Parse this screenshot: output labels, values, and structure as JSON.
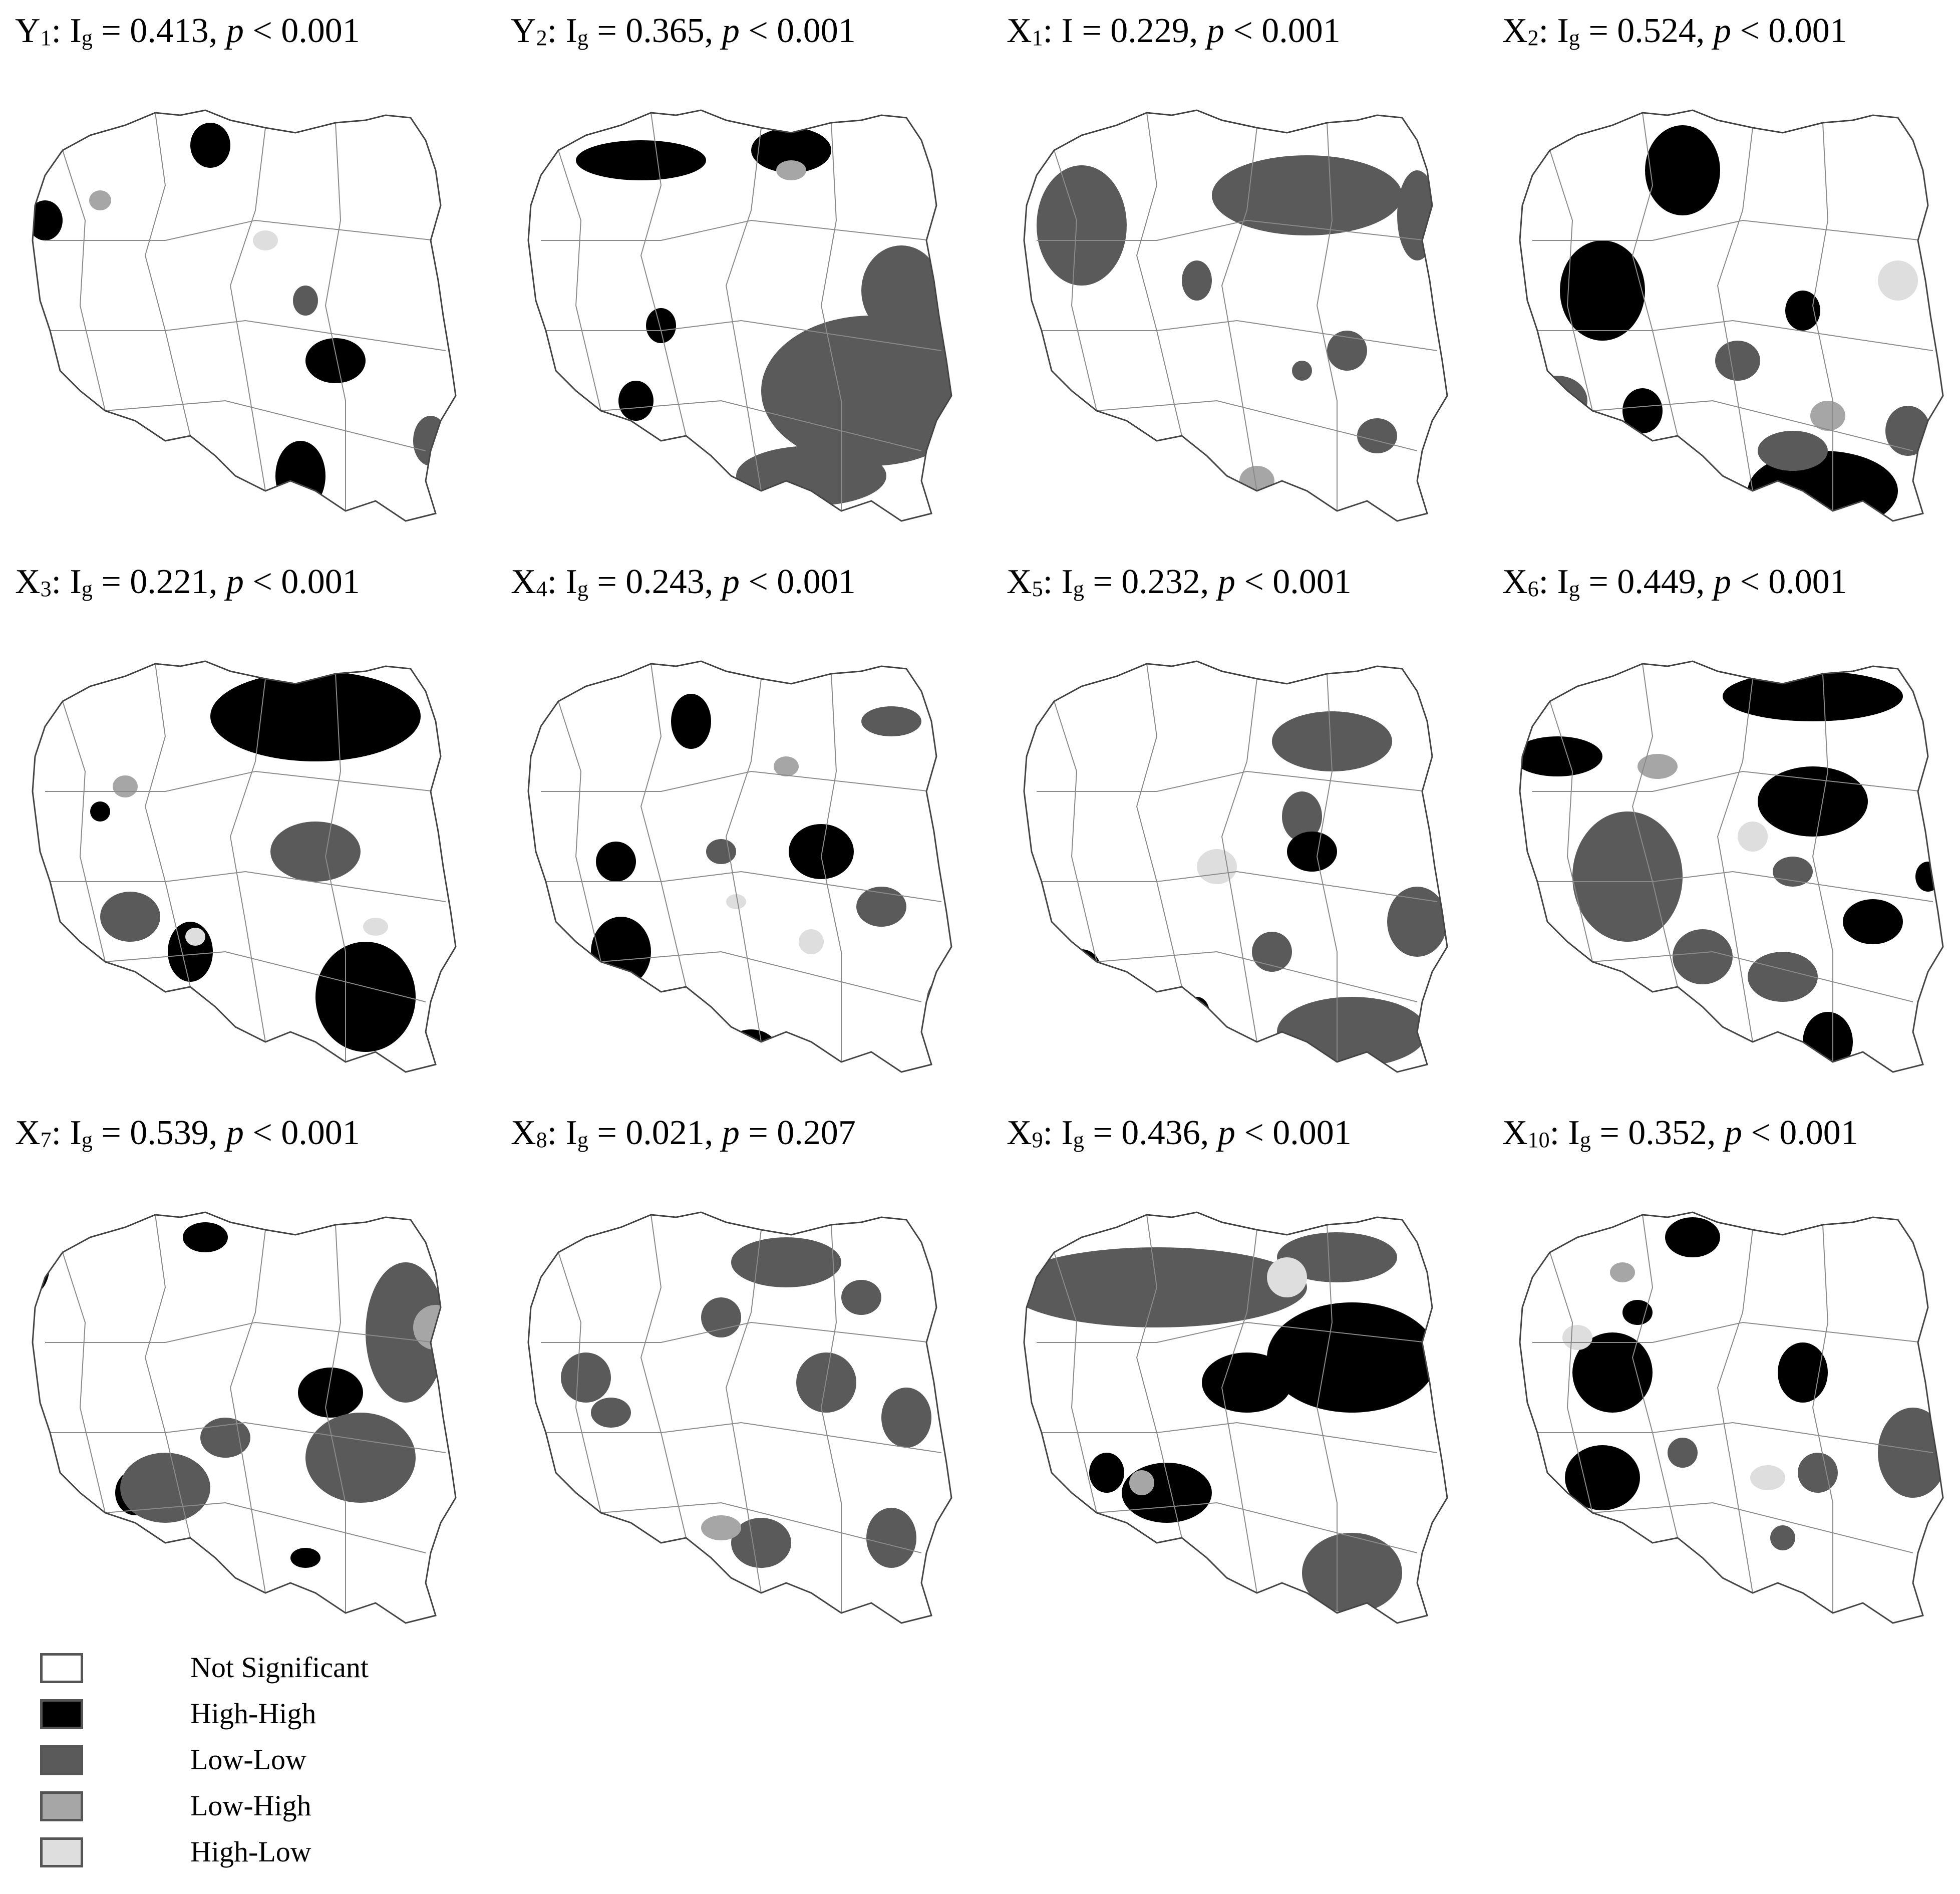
{
  "colors": {
    "not_significant": "#ffffff",
    "high_high": "#000000",
    "low_low": "#5a5a5a",
    "low_high": "#a6a6a6",
    "high_low": "#dedede",
    "border": "#8a8a8a"
  },
  "legend": [
    {
      "label": "Not Significant",
      "category": "not_significant"
    },
    {
      "label": "High-High",
      "category": "high_high"
    },
    {
      "label": "Low-Low",
      "category": "low_low"
    },
    {
      "label": "Low-High",
      "category": "low_high"
    },
    {
      "label": "High-Low",
      "category": "high_low"
    }
  ],
  "panels": [
    {
      "var": "Y",
      "sub": "1",
      "stat": ": I",
      "stat_sub": "g",
      "value": " = 0.413, ",
      "p": "p",
      "p_rel": " < 0.001"
    },
    {
      "var": "Y",
      "sub": "2",
      "stat": ": I",
      "stat_sub": "g",
      "value": " = 0.365, ",
      "p": "p",
      "p_rel": " < 0.001"
    },
    {
      "var": "X",
      "sub": "1",
      "stat": ": I",
      "stat_sub": "",
      "value": " = 0.229, ",
      "p": "p",
      "p_rel": " < 0.001"
    },
    {
      "var": "X",
      "sub": "2",
      "stat": ": I",
      "stat_sub": "g",
      "value": " = 0.524, ",
      "p": "p",
      "p_rel": " < 0.001"
    },
    {
      "var": "X",
      "sub": "3",
      "stat": ": I",
      "stat_sub": "g",
      "value": " = 0.221, ",
      "p": "p",
      "p_rel": " < 0.001"
    },
    {
      "var": "X",
      "sub": "4",
      "stat": ": I",
      "stat_sub": "g",
      "value": " = 0.243, ",
      "p": "p",
      "p_rel": " < 0.001"
    },
    {
      "var": "X",
      "sub": "5",
      "stat": ": I",
      "stat_sub": "g",
      "value": " = 0.232, ",
      "p": "p",
      "p_rel": " < 0.001"
    },
    {
      "var": "X",
      "sub": "6",
      "stat": ": I",
      "stat_sub": "g",
      "value": " = 0.449, ",
      "p": "p",
      "p_rel": " < 0.001"
    },
    {
      "var": "X",
      "sub": "7",
      "stat": ": I",
      "stat_sub": "g",
      "value": " = 0.539, ",
      "p": "p",
      "p_rel": " < 0.001"
    },
    {
      "var": "X",
      "sub": "8",
      "stat": ": I",
      "stat_sub": "g",
      "value": " = 0.021, ",
      "p": "p",
      "p_rel": " = 0.207"
    },
    {
      "var": "X",
      "sub": "9",
      "stat": ": I",
      "stat_sub": "g",
      "value": " = 0.436, ",
      "p": "p",
      "p_rel": " < 0.001"
    },
    {
      "var": "X",
      "sub": "10",
      "stat": ": I",
      "stat_sub": "g",
      "value": " = 0.352, ",
      "p": "p",
      "p_rel": " < 0.001"
    }
  ]
}
